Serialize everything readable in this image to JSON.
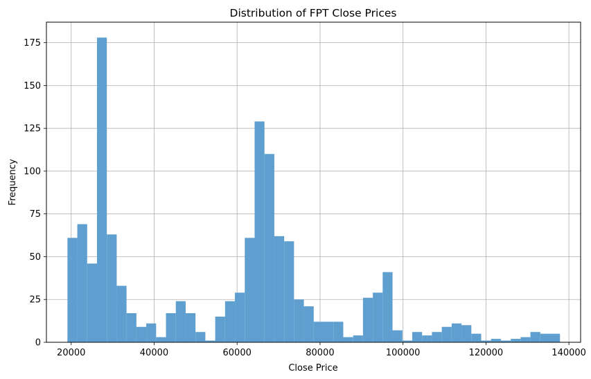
{
  "chart_data": {
    "type": "bar",
    "title": "Distribution of FPT Close Prices",
    "xlabel": "Close Price",
    "ylabel": "Frequency",
    "xlim": [
      14030,
      142820
    ],
    "ylim": [
      0,
      187
    ],
    "grid": true,
    "bar_color": "#5f9fcf",
    "bin_start": 19100,
    "bin_width": 2375,
    "values": [
      61,
      69,
      46,
      178,
      63,
      33,
      17,
      9,
      11,
      3,
      17,
      24,
      17,
      6,
      1,
      15,
      24,
      29,
      61,
      129,
      110,
      62,
      59,
      25,
      21,
      12,
      12,
      12,
      3,
      4,
      26,
      29,
      41,
      7,
      1,
      6,
      4,
      6,
      9,
      11,
      10,
      5,
      1,
      2,
      1,
      2,
      3,
      6,
      5,
      5
    ],
    "x_ticks": [
      20000,
      40000,
      60000,
      80000,
      100000,
      120000,
      140000
    ],
    "x_tick_labels": [
      "20000",
      "40000",
      "60000",
      "80000",
      "100000",
      "120000",
      "140000"
    ],
    "y_ticks": [
      0,
      25,
      50,
      75,
      100,
      125,
      150,
      175
    ],
    "y_tick_labels": [
      "0",
      "25",
      "50",
      "75",
      "100",
      "125",
      "150",
      "175"
    ]
  }
}
